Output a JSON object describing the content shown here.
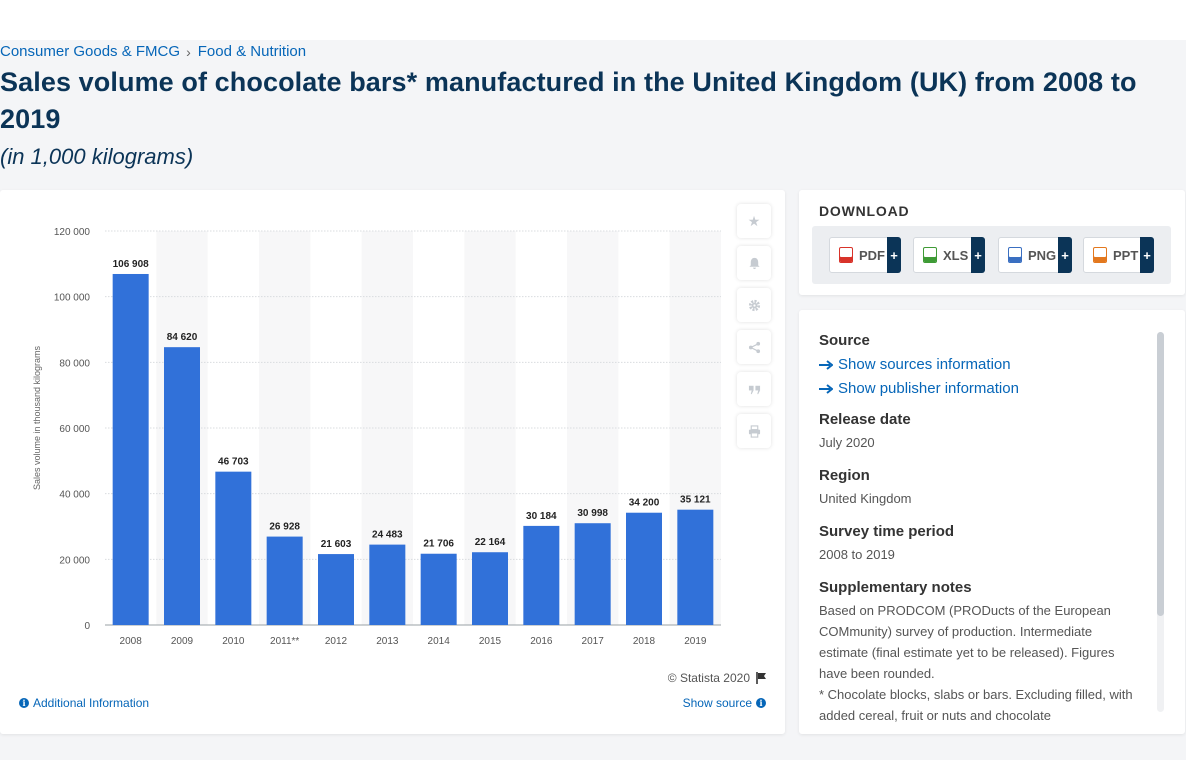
{
  "breadcrumb": [
    "Consumer Goods & FMCG",
    "Food & Nutrition"
  ],
  "title": "Sales volume of chocolate bars* manufactured in the United Kingdom (UK) from 2008 to 2019",
  "subtitle": "(in 1,000 kilograms)",
  "chart_footer": {
    "credit": "© Statista 2020",
    "additional_info": "Additional Information",
    "show_source": "Show source"
  },
  "chart_data": {
    "type": "bar",
    "categories": [
      "2008",
      "2009",
      "2010",
      "2011**",
      "2012",
      "2013",
      "2014",
      "2015",
      "2016",
      "2017",
      "2018",
      "2019"
    ],
    "values": [
      106908,
      84620,
      46703,
      26928,
      21603,
      24483,
      21706,
      22164,
      30184,
      30998,
      34200,
      35121
    ],
    "value_labels": [
      "106 908",
      "84 620",
      "46 703",
      "26 928",
      "21 603",
      "24 483",
      "21 706",
      "22 164",
      "30 184",
      "30 998",
      "34 200",
      "35 121"
    ],
    "ylabel": "Sales volume in thousand kilograms",
    "ylim": [
      0,
      120000
    ],
    "yticks": [
      "0",
      "20 000",
      "40 000",
      "60 000",
      "80 000",
      "100 000",
      "120 000"
    ],
    "grid": true,
    "color": "#3171d9"
  },
  "tools": [
    "star-icon",
    "bell-icon",
    "gear-icon",
    "share-icon",
    "quote-icon",
    "print-icon"
  ],
  "download": {
    "title": "DOWNLOAD",
    "buttons": [
      {
        "label": "PDF",
        "color": "#d8332a"
      },
      {
        "label": "XLS",
        "color": "#3f9b36"
      },
      {
        "label": "PNG",
        "color": "#3a6fc1"
      },
      {
        "label": "PPT",
        "color": "#e3781e"
      }
    ],
    "plus": "+"
  },
  "source_panel": {
    "source_label": "Source",
    "show_sources": "Show sources information",
    "show_publisher": "Show publisher information",
    "release_label": "Release date",
    "release_value": "July 2020",
    "region_label": "Region",
    "region_value": "United Kingdom",
    "period_label": "Survey time period",
    "period_value": "2008 to 2019",
    "notes_label": "Supplementary notes",
    "notes_value": "Based on PRODCOM (PRODucts of the European COMmunity) survey of production. Intermediate estimate (final estimate yet to be released). Figures have been rounded.",
    "notes_value_2": "* Chocolate blocks, slabs or bars. Excluding filled, with added cereal, fruit or nuts and chocolate"
  }
}
